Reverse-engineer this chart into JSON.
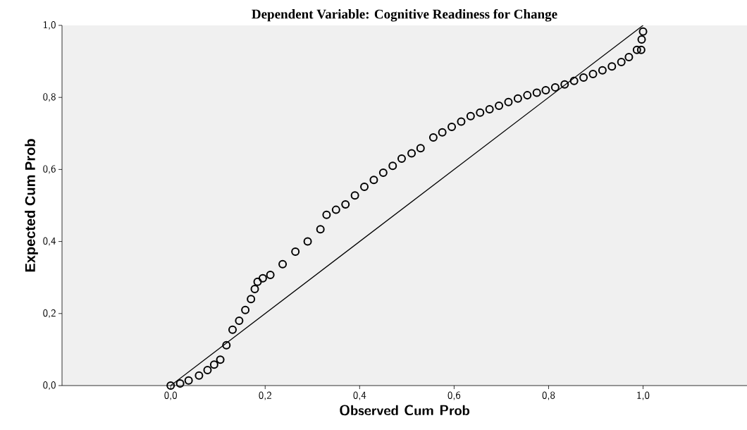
{
  "chart_data": {
    "type": "scatter",
    "title": "Dependent Variable: Cognitive Readiness for Change",
    "xlabel": "Observed Cum Prob",
    "ylabel": "Expected Cum Prob",
    "xlim": [
      -0.23,
      1.22
    ],
    "ylim": [
      0,
      1
    ],
    "xticks": [
      {
        "value": 0,
        "label": "0,0"
      },
      {
        "value": 0.2,
        "label": "0,2"
      },
      {
        "value": 0.4,
        "label": "0,4"
      },
      {
        "value": 0.6,
        "label": "0,6"
      },
      {
        "value": 0.8,
        "label": "0,8"
      },
      {
        "value": 1,
        "label": "1,0"
      }
    ],
    "yticks": [
      {
        "value": 0,
        "label": "0,0"
      },
      {
        "value": 0.2,
        "label": "0,2"
      },
      {
        "value": 0.4,
        "label": "0,4"
      },
      {
        "value": 0.6,
        "label": "0,6"
      },
      {
        "value": 0.8,
        "label": "0,8"
      },
      {
        "value": 1,
        "label": "1,0"
      }
    ],
    "marker": "circle",
    "grid": false,
    "series": [
      {
        "color": "#000000",
        "x": [
          0.0,
          0.02,
          0.038,
          0.06,
          0.078,
          0.092,
          0.105,
          0.118,
          0.131,
          0.145,
          0.158,
          0.17,
          0.178,
          0.184,
          0.195,
          0.211,
          0.237,
          0.264,
          0.29,
          0.317,
          0.33,
          0.35,
          0.37,
          0.39,
          0.41,
          0.43,
          0.45,
          0.47,
          0.489,
          0.51,
          0.529,
          0.556,
          0.575,
          0.595,
          0.615,
          0.635,
          0.655,
          0.675,
          0.695,
          0.715,
          0.735,
          0.755,
          0.775,
          0.794,
          0.814,
          0.834,
          0.854,
          0.874,
          0.894,
          0.914,
          0.934,
          0.954,
          0.97,
          0.987,
          0.996,
          0.997,
          1.0
        ],
        "values": [
          0.0,
          0.006,
          0.014,
          0.028,
          0.043,
          0.058,
          0.072,
          0.112,
          0.155,
          0.18,
          0.21,
          0.24,
          0.268,
          0.288,
          0.298,
          0.307,
          0.337,
          0.372,
          0.4,
          0.434,
          0.474,
          0.488,
          0.503,
          0.528,
          0.552,
          0.571,
          0.591,
          0.61,
          0.63,
          0.645,
          0.659,
          0.689,
          0.703,
          0.718,
          0.733,
          0.748,
          0.758,
          0.767,
          0.777,
          0.787,
          0.797,
          0.806,
          0.813,
          0.82,
          0.828,
          0.836,
          0.846,
          0.855,
          0.865,
          0.875,
          0.886,
          0.898,
          0.912,
          0.932,
          0.932,
          0.961,
          0.983
        ]
      },
      {
        "type": "line",
        "marker": "none",
        "color": "#000000",
        "x": [
          0,
          1
        ],
        "values": [
          0,
          1
        ]
      }
    ]
  }
}
